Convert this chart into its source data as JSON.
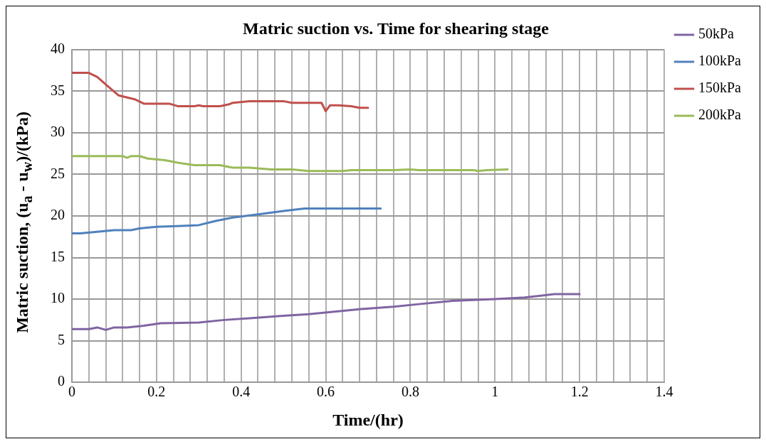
{
  "chart_data": {
    "type": "line",
    "title": "Matric suction vs. Time for shearing stage",
    "xlabel": "Time/(hr)",
    "ylabel": "Matric suction, (u$_{a}$ - u$_{w}$)/(kPa)",
    "xlim": [
      0,
      1.4
    ],
    "ylim": [
      0,
      40
    ],
    "xticks": [
      0,
      {
        "value": 0.04,
        "label": null
      },
      {
        "value": 0.08,
        "label": null
      },
      {
        "value": 0.12,
        "label": null
      },
      {
        "value": 0.16,
        "label": null
      },
      0.2,
      {
        "value": 0.24,
        "label": null
      },
      {
        "value": 0.28,
        "label": null
      },
      {
        "value": 0.32,
        "label": null
      },
      {
        "value": 0.36,
        "label": null
      },
      0.4,
      {
        "value": 0.44,
        "label": null
      },
      {
        "value": 0.48,
        "label": null
      },
      {
        "value": 0.52,
        "label": null
      },
      {
        "value": 0.56,
        "label": null
      },
      0.6,
      {
        "value": 0.64,
        "label": null
      },
      {
        "value": 0.68,
        "label": null
      },
      {
        "value": 0.72,
        "label": null
      },
      {
        "value": 0.76,
        "label": null
      },
      0.8,
      {
        "value": 0.84,
        "label": null
      },
      {
        "value": 0.88,
        "label": null
      },
      {
        "value": 0.92,
        "label": null
      },
      {
        "value": 0.96,
        "label": null
      },
      1,
      {
        "value": 1.04,
        "label": null
      },
      {
        "value": 1.08,
        "label": null
      },
      {
        "value": 1.12,
        "label": null
      },
      {
        "value": 1.16,
        "label": null
      },
      1.2,
      {
        "value": 1.24,
        "label": null
      },
      {
        "value": 1.28,
        "label": null
      },
      {
        "value": 1.32,
        "label": null
      },
      {
        "value": 1.36,
        "label": null
      },
      1.4
    ],
    "yticks": [
      0,
      5,
      10,
      15,
      20,
      25,
      30,
      35,
      40
    ],
    "grid": true,
    "legend": "right",
    "marker": "none",
    "line_style": "solid",
    "series": [
      {
        "name": "50kPa",
        "color": "#8064a2",
        "x": [
          0,
          0.04,
          0.06,
          0.08,
          0.1,
          0.13,
          0.17,
          0.21,
          0.3,
          0.36,
          0.42,
          0.5,
          0.56,
          0.62,
          0.68,
          0.76,
          0.82,
          0.9,
          1.0,
          1.07,
          1.14,
          1.2
        ],
        "values": [
          6.4,
          6.4,
          6.6,
          6.3,
          6.6,
          6.6,
          6.8,
          7.1,
          7.2,
          7.5,
          7.7,
          8.0,
          8.2,
          8.5,
          8.8,
          9.1,
          9.4,
          9.8,
          10.0,
          10.2,
          10.6,
          10.6
        ]
      },
      {
        "name": "100kPa",
        "color": "#4f81bd",
        "x": [
          0,
          0.02,
          0.06,
          0.1,
          0.14,
          0.16,
          0.2,
          0.26,
          0.3,
          0.34,
          0.38,
          0.44,
          0.5,
          0.55,
          0.73
        ],
        "values": [
          17.9,
          17.9,
          18.1,
          18.3,
          18.3,
          18.5,
          18.7,
          18.8,
          18.9,
          19.4,
          19.8,
          20.2,
          20.6,
          20.9,
          20.9
        ]
      },
      {
        "name": "150kPa",
        "color": "#c0504d",
        "x": [
          0,
          0.04,
          0.06,
          0.08,
          0.11,
          0.15,
          0.17,
          0.23,
          0.25,
          0.29,
          0.3,
          0.31,
          0.35,
          0.37,
          0.38,
          0.42,
          0.5,
          0.52,
          0.59,
          0.6,
          0.61,
          0.63,
          0.66,
          0.68,
          0.7
        ],
        "values": [
          37.2,
          37.2,
          36.7,
          35.8,
          34.5,
          34.0,
          33.5,
          33.5,
          33.2,
          33.2,
          33.3,
          33.2,
          33.2,
          33.4,
          33.6,
          33.8,
          33.8,
          33.6,
          33.6,
          32.6,
          33.3,
          33.3,
          33.2,
          33.0,
          33.0
        ]
      },
      {
        "name": "200kPa",
        "color": "#9bbb59",
        "x": [
          0,
          0.12,
          0.13,
          0.14,
          0.16,
          0.18,
          0.22,
          0.25,
          0.29,
          0.35,
          0.38,
          0.42,
          0.47,
          0.52,
          0.56,
          0.64,
          0.66,
          0.76,
          0.8,
          0.82,
          0.95,
          0.96,
          0.98,
          1.03
        ],
        "values": [
          27.2,
          27.2,
          27.0,
          27.2,
          27.2,
          26.9,
          26.7,
          26.4,
          26.1,
          26.1,
          25.8,
          25.8,
          25.6,
          25.6,
          25.4,
          25.4,
          25.5,
          25.5,
          25.6,
          25.5,
          25.5,
          25.4,
          25.5,
          25.6
        ]
      }
    ]
  }
}
